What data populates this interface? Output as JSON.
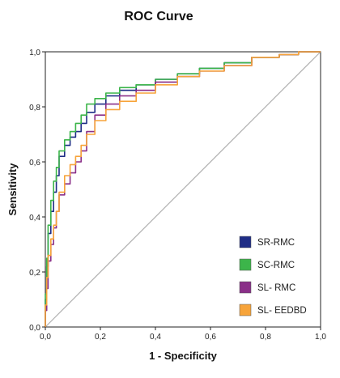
{
  "chart_data": {
    "type": "line",
    "title": "ROC Curve",
    "xlabel": "1 - Specificity",
    "ylabel": "Sensitivity",
    "xlim": [
      0,
      1
    ],
    "ylim": [
      0,
      1
    ],
    "x_ticks": [
      "0,0",
      "0,2",
      "0,4",
      "0,6",
      "0,8",
      "1,0"
    ],
    "y_ticks": [
      "0,0",
      "0,2",
      "0,4",
      "0,6",
      "0,8",
      "1,0"
    ],
    "grid": false,
    "legend_position": "bottom-right",
    "reference_line": {
      "color": "#b0b0b0",
      "x": [
        0,
        1
      ],
      "y": [
        0,
        1
      ]
    },
    "series": [
      {
        "name": "SR-RMC",
        "color": "#1f2d86",
        "x": [
          0,
          0.005,
          0.01,
          0.02,
          0.03,
          0.04,
          0.05,
          0.07,
          0.09,
          0.11,
          0.13,
          0.15,
          0.18,
          0.22,
          0.27,
          0.33,
          0.4,
          0.48,
          0.56,
          0.65,
          0.75,
          0.85,
          0.92,
          1.0
        ],
        "y": [
          0,
          0.1,
          0.22,
          0.34,
          0.42,
          0.49,
          0.55,
          0.62,
          0.66,
          0.69,
          0.71,
          0.74,
          0.78,
          0.81,
          0.84,
          0.86,
          0.88,
          0.9,
          0.92,
          0.94,
          0.96,
          0.98,
          0.99,
          1.0
        ]
      },
      {
        "name": "SC-RMC",
        "color": "#3cb54a",
        "x": [
          0,
          0.005,
          0.01,
          0.02,
          0.03,
          0.04,
          0.05,
          0.07,
          0.09,
          0.11,
          0.13,
          0.15,
          0.18,
          0.22,
          0.27,
          0.33,
          0.4,
          0.48,
          0.56,
          0.65,
          0.75,
          0.85,
          0.92,
          1.0
        ],
        "y": [
          0,
          0.12,
          0.25,
          0.37,
          0.46,
          0.53,
          0.58,
          0.64,
          0.68,
          0.71,
          0.74,
          0.77,
          0.81,
          0.83,
          0.85,
          0.87,
          0.88,
          0.9,
          0.92,
          0.94,
          0.96,
          0.98,
          0.99,
          1.0
        ]
      },
      {
        "name": "SL- RMC",
        "color": "#8a2f88",
        "x": [
          0,
          0.005,
          0.01,
          0.02,
          0.03,
          0.04,
          0.05,
          0.07,
          0.09,
          0.11,
          0.13,
          0.15,
          0.18,
          0.22,
          0.27,
          0.33,
          0.4,
          0.48,
          0.56,
          0.65,
          0.75,
          0.85,
          0.92,
          1.0
        ],
        "y": [
          0,
          0.06,
          0.14,
          0.24,
          0.3,
          0.36,
          0.42,
          0.48,
          0.52,
          0.56,
          0.6,
          0.64,
          0.71,
          0.77,
          0.81,
          0.84,
          0.86,
          0.89,
          0.91,
          0.93,
          0.95,
          0.98,
          0.99,
          1.0
        ]
      },
      {
        "name": "SL- EEDBD",
        "color": "#f7a43a",
        "x": [
          0,
          0.005,
          0.01,
          0.02,
          0.03,
          0.04,
          0.05,
          0.07,
          0.09,
          0.11,
          0.13,
          0.15,
          0.18,
          0.22,
          0.27,
          0.33,
          0.4,
          0.48,
          0.56,
          0.65,
          0.75,
          0.85,
          0.92,
          1.0
        ],
        "y": [
          0,
          0.08,
          0.18,
          0.26,
          0.32,
          0.37,
          0.42,
          0.49,
          0.55,
          0.59,
          0.62,
          0.66,
          0.7,
          0.75,
          0.79,
          0.82,
          0.85,
          0.88,
          0.91,
          0.93,
          0.95,
          0.98,
          0.99,
          1.0
        ]
      }
    ]
  }
}
